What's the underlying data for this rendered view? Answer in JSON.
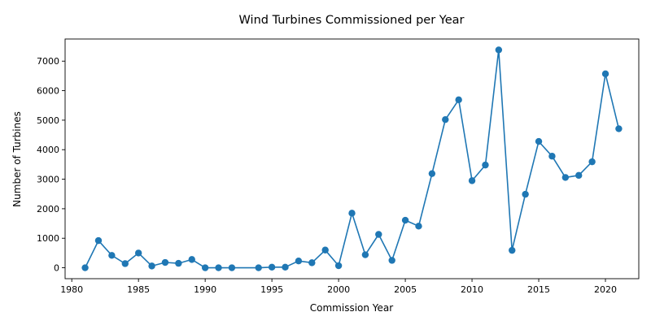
{
  "chart_data": {
    "type": "line",
    "title": "Wind Turbines Commissioned per Year",
    "xlabel": "Commission Year",
    "ylabel": "Number of Turbines",
    "xlim": [
      1979.5,
      2022.5
    ],
    "ylim": [
      -370,
      7750
    ],
    "x_ticks": [
      1980,
      1985,
      1990,
      1995,
      2000,
      2005,
      2010,
      2015,
      2020
    ],
    "y_ticks": [
      0,
      1000,
      2000,
      3000,
      4000,
      5000,
      6000,
      7000
    ],
    "grid": false,
    "line_color": "#1f77b4",
    "marker": "circle",
    "series": [
      {
        "x": [
          1981,
          1982,
          1983,
          1984,
          1985,
          1986,
          1987,
          1988,
          1989,
          1990,
          1991,
          1992,
          1994,
          1995,
          1996,
          1997,
          1998,
          1999,
          2000,
          2001,
          2002,
          2003,
          2004,
          2005,
          2006,
          2007,
          2008,
          2009,
          2010,
          2011,
          2012,
          2013,
          2014,
          2015,
          2016,
          2017,
          2018,
          2019,
          2020,
          2021
        ],
        "y": [
          0,
          920,
          420,
          140,
          500,
          60,
          180,
          150,
          280,
          0,
          0,
          0,
          0,
          20,
          20,
          230,
          170,
          600,
          70,
          1850,
          440,
          1130,
          250,
          1610,
          1410,
          3190,
          5020,
          5690,
          2950,
          3480,
          7380,
          590,
          2490,
          4280,
          3780,
          3060,
          3130,
          3590,
          6570,
          4710
        ]
      }
    ]
  }
}
